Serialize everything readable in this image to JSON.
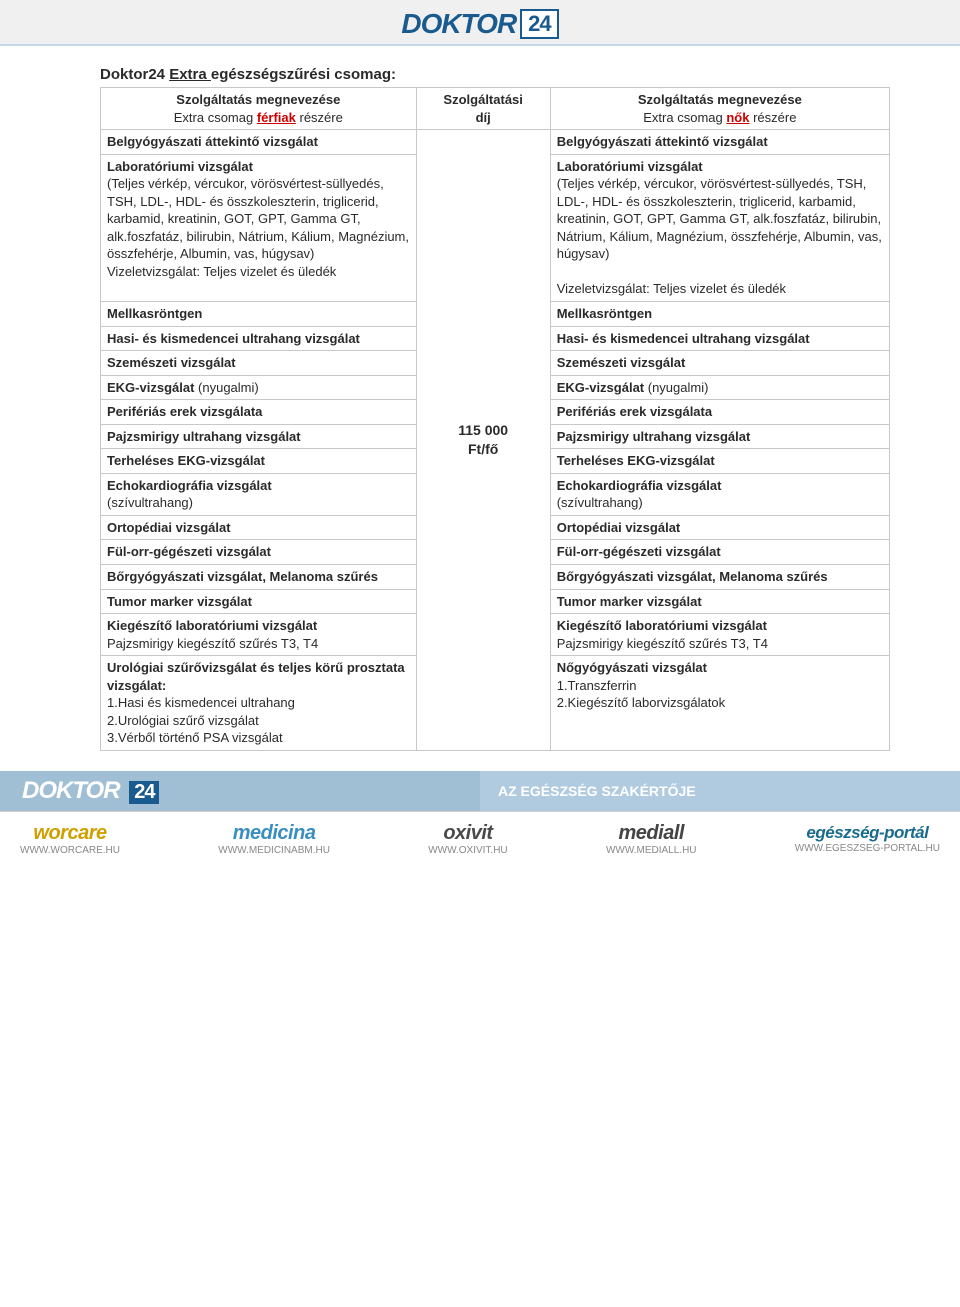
{
  "header": {
    "brand": "DOKTOR",
    "twentyfour": "24"
  },
  "package": {
    "title_prefix": "Doktor24 ",
    "title_underlined": "Extra ",
    "title_suffix": "egészségszűrési csomag:"
  },
  "table": {
    "header": {
      "left_line1": "Szolgáltatás megnevezése",
      "left_line2a": "Extra csomag ",
      "left_line2_red": "férfiak",
      "left_line2b": " részére",
      "mid_line1": "Szolgáltatási",
      "mid_line2": "díj",
      "right_line1": "Szolgáltatás megnevezése",
      "right_line2a": "Extra csomag ",
      "right_line2_red": "nők",
      "right_line2b": " részére"
    },
    "price": "115 000 Ft/fő",
    "rows_left": [
      {
        "bold": "Belgyógyászati áttekintő vizsgálat",
        "plain": ""
      },
      {
        "bold": "Laboratóriumi vizsgálat",
        "plain": "(Teljes vérkép, vércukor, vörösvértest-süllyedés, TSH, LDL-, HDL- és összkoleszterin, triglicerid, karbamid, kreatinin, GOT, GPT, Gamma GT, alk.foszfatáz, bilirubin, Nátrium, Kálium, Magnézium, összfehérje, Albumin, vas, húgysav)\nVizeletvizsgálat: Teljes vizelet és üledék"
      },
      {
        "bold": "Mellkasröntgen",
        "plain": ""
      },
      {
        "bold": "Hasi- és kismedencei ultrahang vizsgálat",
        "plain": ""
      },
      {
        "bold": "Szemészeti vizsgálat",
        "plain": ""
      },
      {
        "bold": "EKG-vizsgálat ",
        "inline_plain": "(nyugalmi)"
      },
      {
        "bold": "Perifériás erek vizsgálata",
        "plain": ""
      },
      {
        "bold": "Pajzsmirigy ultrahang vizsgálat",
        "plain": ""
      },
      {
        "bold": "Terheléses EKG-vizsgálat",
        "plain": ""
      },
      {
        "bold": "Echokardiográfia vizsgálat",
        "plain": "(szívultrahang)"
      },
      {
        "bold": "Ortopédiai vizsgálat",
        "plain": ""
      },
      {
        "bold": "Fül-orr-gégészeti vizsgálat",
        "plain": ""
      },
      {
        "bold": "Bőrgyógyászati vizsgálat, Melanoma szűrés",
        "plain": ""
      },
      {
        "bold": "Tumor marker vizsgálat",
        "plain": ""
      },
      {
        "bold": "Kiegészítő laboratóriumi vizsgálat",
        "plain": "Pajzsmirigy kiegészítő szűrés T3, T4"
      },
      {
        "bold": "Urológiai szűrővizsgálat és teljes körű prosztata vizsgálat:",
        "plain": "1.Hasi és kismedencei ultrahang\n2.Urológiai szűrő vizsgálat\n3.Vérből történő PSA vizsgálat"
      }
    ],
    "rows_right": [
      {
        "bold": "Belgyógyászati áttekintő vizsgálat",
        "plain": ""
      },
      {
        "bold": "Laboratóriumi vizsgálat",
        "plain": "(Teljes vérkép, vércukor, vörösvértest-süllyedés, TSH, LDL-, HDL- és összkoleszterin, triglicerid, karbamid, kreatinin, GOT, GPT, Gamma GT, alk.foszfatáz, bilirubin, Nátrium, Kálium, Magnézium, összfehérje, Albumin, vas, húgysav)\n\nVizeletvizsgálat: Teljes vizelet és üledék"
      },
      {
        "bold": "Mellkasröntgen",
        "plain": ""
      },
      {
        "bold": "Hasi- és kismedencei ultrahang vizsgálat",
        "plain": ""
      },
      {
        "bold": "Szemészeti vizsgálat",
        "plain": ""
      },
      {
        "bold": "EKG-vizsgálat ",
        "inline_plain": "(nyugalmi)"
      },
      {
        "bold": "Perifériás erek vizsgálata",
        "plain": ""
      },
      {
        "bold": "Pajzsmirigy ultrahang vizsgálat",
        "plain": ""
      },
      {
        "bold": "Terheléses EKG-vizsgálat",
        "plain": ""
      },
      {
        "bold": "Echokardiográfia vizsgálat",
        "plain": "(szívultrahang)"
      },
      {
        "bold": "Ortopédiai vizsgálat",
        "plain": ""
      },
      {
        "bold": "Fül-orr-gégészeti vizsgálat",
        "plain": ""
      },
      {
        "bold": "Bőrgyógyászati vizsgálat, Melanoma szűrés",
        "plain": ""
      },
      {
        "bold": "Tumor marker vizsgálat",
        "plain": ""
      },
      {
        "bold": "Kiegészítő laboratóriumi vizsgálat",
        "plain": "Pajzsmirigy kiegészítő szűrés T3, T4"
      },
      {
        "bold": "Nőgyógyászati vizsgálat",
        "plain": "1.Transzferrin\n2.Kiegészítő laborvizsgálatok"
      }
    ]
  },
  "bottom_bar": {
    "brand": "DOKTOR",
    "twentyfour": "24",
    "tagline": "AZ EGÉSZSÉG SZAKÉRTŐJE"
  },
  "footer_logos": [
    {
      "name": "worcare",
      "url": "WWW.WORCARE.HU",
      "class": "wor"
    },
    {
      "name": "medicina",
      "url": "WWW.MEDICINABM.HU",
      "class": "med"
    },
    {
      "name": "oxivit",
      "url": "WWW.OXIVIT.HU",
      "class": "oxi"
    },
    {
      "name": "mediall",
      "url": "WWW.MEDIALL.HU",
      "class": "mdl"
    },
    {
      "name": "egészség-portál",
      "url": "WWW.EGESZSEG-PORTAL.HU",
      "class": "ep"
    }
  ],
  "colors": {
    "brand_blue": "#1a5b8f",
    "header_bg": "#f0f0f0",
    "bottom_left": "#a0bfd5",
    "bottom_right": "#b0cbe0",
    "table_border": "#c8c8c8",
    "red": "#cc0000"
  }
}
